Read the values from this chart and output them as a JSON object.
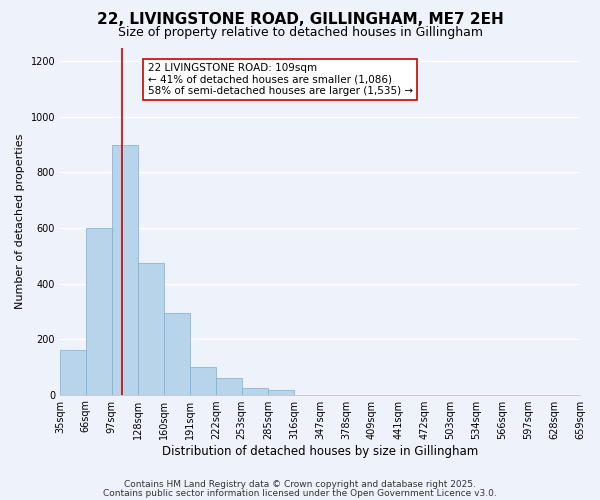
{
  "title": "22, LIVINGSTONE ROAD, GILLINGHAM, ME7 2EH",
  "subtitle": "Size of property relative to detached houses in Gillingham",
  "xlabel": "Distribution of detached houses by size in Gillingham",
  "ylabel": "Number of detached properties",
  "bin_edges": [
    35,
    66,
    97,
    128,
    160,
    191,
    222,
    253,
    285,
    316,
    347,
    378,
    409,
    441,
    472,
    503,
    534,
    566,
    597,
    628,
    659
  ],
  "bin_labels": [
    "35sqm",
    "66sqm",
    "97sqm",
    "128sqm",
    "160sqm",
    "191sqm",
    "222sqm",
    "253sqm",
    "285sqm",
    "316sqm",
    "347sqm",
    "378sqm",
    "409sqm",
    "441sqm",
    "472sqm",
    "503sqm",
    "534sqm",
    "566sqm",
    "597sqm",
    "628sqm",
    "659sqm"
  ],
  "counts": [
    160,
    600,
    900,
    475,
    295,
    100,
    60,
    25,
    15,
    0,
    0,
    0,
    0,
    0,
    0,
    0,
    0,
    0,
    0,
    0
  ],
  "bar_color": "#b8d4ea",
  "bar_edge_color": "#7aafd4",
  "vline_x": 109,
  "vline_color": "#cc0000",
  "annotation_text": "22 LIVINGSTONE ROAD: 109sqm\n← 41% of detached houses are smaller (1,086)\n58% of semi-detached houses are larger (1,535) →",
  "annotation_box_color": "#ffffff",
  "annotation_box_edge": "#cc0000",
  "ylim": [
    0,
    1250
  ],
  "yticks": [
    0,
    200,
    400,
    600,
    800,
    1000,
    1200
  ],
  "background_color": "#eef2fb",
  "grid_color": "#ffffff",
  "footer_line1": "Contains HM Land Registry data © Crown copyright and database right 2025.",
  "footer_line2": "Contains public sector information licensed under the Open Government Licence v3.0.",
  "title_fontsize": 11,
  "subtitle_fontsize": 9,
  "xlabel_fontsize": 8.5,
  "ylabel_fontsize": 8,
  "tick_fontsize": 7,
  "annotation_fontsize": 7.5,
  "footer_fontsize": 6.5
}
